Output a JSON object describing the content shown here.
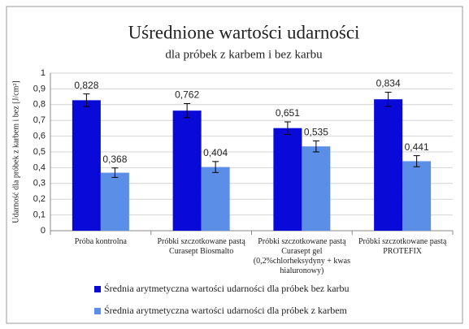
{
  "chart_data": {
    "type": "bar",
    "title": "Uśrednione wartości udarności",
    "subtitle": "dla próbek z karbem i bez karbu",
    "y_label": "Udarność dla próbek z karbem i bez [J/cm²]",
    "categories": [
      "Próba kontrolna",
      "Próbki szczotkowane pastą Curasept Biosmalto",
      "Próbki szczotkowane pastą Curasept gel (0,2%chlorheksydyny + kwas hialuronowy)",
      "Próbki szczotkowane pastą PROTEFIX"
    ],
    "series": [
      {
        "name": "Średnia arytmetyczna wartości udarności dla próbek bez karbu",
        "color": "#0a0ad8",
        "values": [
          0.828,
          0.762,
          0.651,
          0.834
        ],
        "value_labels": [
          "0,828",
          "0,762",
          "0,651",
          "0,834"
        ],
        "errors": [
          0.04,
          0.045,
          0.04,
          0.045
        ]
      },
      {
        "name": "Średnia arytmetyczna wartości udarności dla próbek z karbem",
        "color": "#5b8ee6",
        "values": [
          0.368,
          0.404,
          0.535,
          0.441
        ],
        "value_labels": [
          "0,368",
          "0,404",
          "0,535",
          "0,441"
        ],
        "errors": [
          0.03,
          0.035,
          0.035,
          0.035
        ]
      }
    ],
    "ylim": [
      0,
      1
    ],
    "yticks": [
      0,
      {
        "value": 0.1,
        "label": "0,1"
      },
      {
        "value": 0.2,
        "label": "0,2"
      },
      {
        "value": 0.3,
        "label": "0,3"
      },
      {
        "value": 0.4,
        "label": "0,4"
      },
      {
        "value": 0.5,
        "label": "0,5"
      },
      {
        "value": 0.6,
        "label": "0,6"
      },
      {
        "value": 0.7,
        "label": "0,7"
      },
      {
        "value": 0.8,
        "label": "0,8"
      },
      {
        "value": 0.9,
        "label": "0,9"
      },
      1
    ],
    "grid": true
  }
}
